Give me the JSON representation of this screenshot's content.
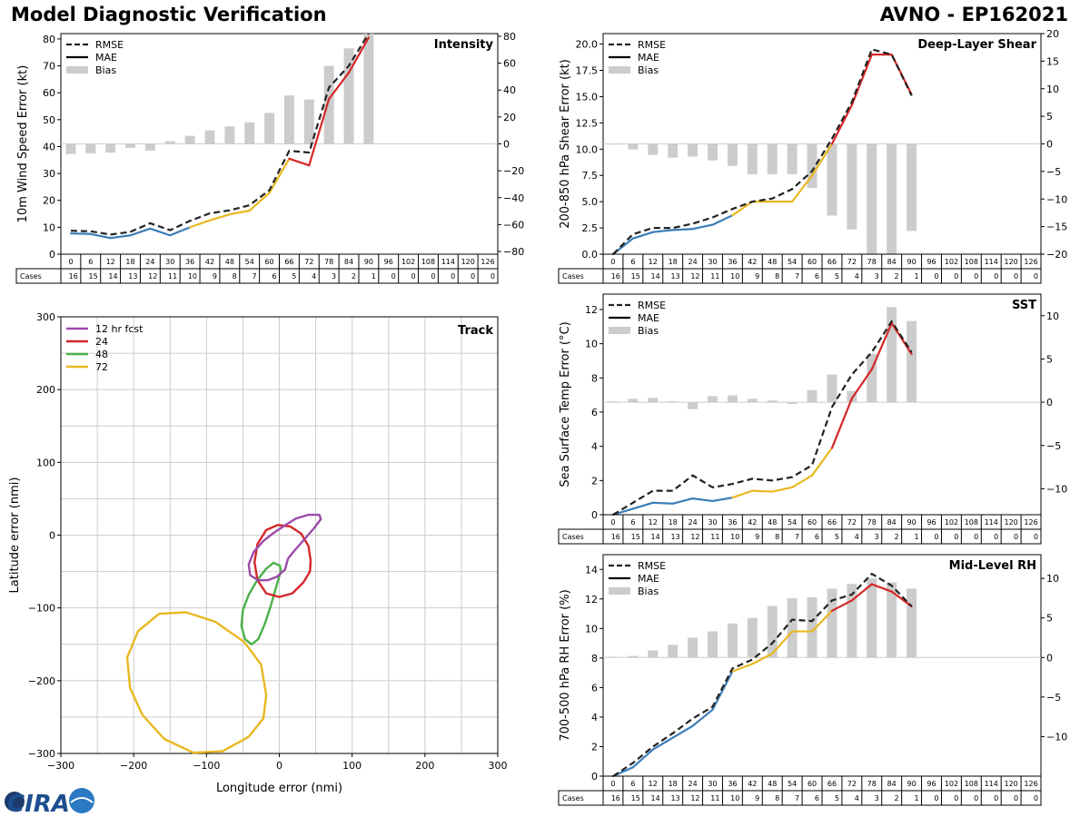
{
  "header": {
    "left_title": "Model Diagnostic Verification",
    "right_title": "AVNO - EP162021"
  },
  "logo": {
    "text": "CIRA"
  },
  "legend_labels": {
    "rmse": "RMSE",
    "mae": "MAE",
    "bias": "Bias"
  },
  "cases_label": "Cases",
  "colors": {
    "rmse": "#222222",
    "mae_early": "#3a7db8",
    "mae_mid": "#e8b820",
    "mae_late": "#d62728",
    "bias": "#cccccc",
    "grid": "#cccccc"
  },
  "chart_data": [
    {
      "type": "line",
      "panel": "intensity",
      "title": "Intensity",
      "ylabel": "10m Wind Speed Error (kt)",
      "ylim": [
        0,
        82
      ],
      "yticks": [
        0,
        10,
        20,
        30,
        40,
        50,
        60,
        70,
        80
      ],
      "y2lim": [
        -82,
        82
      ],
      "y2ticks": [
        -80,
        -60,
        -40,
        -20,
        0,
        20,
        40,
        60,
        80
      ],
      "lead_hours": [
        0,
        6,
        12,
        18,
        24,
        30,
        36,
        42,
        48,
        54,
        60,
        66,
        72,
        78,
        84,
        90,
        96,
        102,
        108,
        114,
        120,
        126
      ],
      "cases": [
        16,
        15,
        14,
        13,
        12,
        11,
        10,
        9,
        8,
        7,
        6,
        5,
        4,
        3,
        2,
        1,
        0,
        0,
        0,
        0,
        0,
        0
      ],
      "series": [
        {
          "name": "RMSE",
          "values": [
            8.7,
            8.5,
            7.3,
            8.3,
            11.5,
            8.9,
            12.4,
            15.2,
            16.3,
            18.2,
            23.8,
            38.4,
            37.8,
            62.0,
            70.0,
            82.0
          ]
        },
        {
          "name": "MAE",
          "values": [
            7.7,
            7.5,
            6.0,
            7.0,
            9.5,
            7.0,
            10.0,
            12.6,
            14.8,
            16.2,
            22.8,
            35.5,
            33.0,
            57.7,
            67.5,
            80.5
          ]
        },
        {
          "name": "Bias",
          "values": [
            -7.5,
            -7,
            -6.5,
            -3,
            -5,
            2,
            6,
            10,
            13,
            16,
            23,
            36,
            33,
            58,
            71,
            82
          ]
        }
      ]
    },
    {
      "type": "line",
      "panel": "deep_layer_shear",
      "title": "Deep-Layer Shear",
      "ylabel": "200-850 hPa Shear Error (kt)",
      "ylim": [
        0,
        21
      ],
      "yticks": [
        0.0,
        2.5,
        5.0,
        7.5,
        10.0,
        12.5,
        15.0,
        17.5,
        20.0
      ],
      "y2lim": [
        -20,
        20
      ],
      "y2ticks": [
        -20,
        -15,
        -10,
        -5,
        0,
        5,
        10,
        15,
        20
      ],
      "lead_hours": [
        0,
        6,
        12,
        18,
        24,
        30,
        36,
        42,
        48,
        54,
        60,
        66,
        72,
        78,
        84,
        90,
        96,
        102,
        108,
        114,
        120,
        126
      ],
      "cases": [
        16,
        15,
        14,
        13,
        12,
        11,
        10,
        9,
        8,
        7,
        6,
        5,
        4,
        3,
        2,
        1,
        0,
        0,
        0,
        0,
        0,
        0
      ],
      "series": [
        {
          "name": "RMSE",
          "values": [
            0.0,
            1.9,
            2.5,
            2.5,
            2.9,
            3.5,
            4.3,
            5.0,
            5.3,
            6.2,
            7.9,
            11.0,
            14.5,
            19.5,
            19.0,
            15.1
          ]
        },
        {
          "name": "MAE",
          "values": [
            0.0,
            1.5,
            2.1,
            2.3,
            2.4,
            2.8,
            3.7,
            5.0,
            5.0,
            5.0,
            7.5,
            10.5,
            14.2,
            19.0,
            19.0,
            15.2
          ]
        },
        {
          "name": "Bias",
          "values": [
            0,
            -1,
            -2,
            -2.5,
            -2.3,
            -3,
            -4,
            -5.5,
            -5.5,
            -5.5,
            -8,
            -13,
            -15.5,
            -20,
            -20,
            -15.8
          ]
        }
      ]
    },
    {
      "type": "line",
      "panel": "sst",
      "title": "SST",
      "ylabel": "Sea Surface Temp Error (°C)",
      "ylim": [
        0,
        12.9
      ],
      "yticks": [
        0,
        2,
        4,
        6,
        8,
        10,
        12
      ],
      "y2lim": [
        -13,
        12.5
      ],
      "y2ticks": [
        -10,
        -5,
        0,
        5,
        10
      ],
      "lead_hours": [
        0,
        6,
        12,
        18,
        24,
        30,
        36,
        42,
        48,
        54,
        60,
        66,
        72,
        78,
        84,
        90,
        96,
        102,
        108,
        114,
        120,
        126
      ],
      "cases": [
        16,
        15,
        14,
        13,
        12,
        11,
        10,
        9,
        8,
        7,
        6,
        5,
        4,
        3,
        2,
        1,
        0,
        0,
        0,
        0,
        0,
        0
      ],
      "series": [
        {
          "name": "RMSE",
          "values": [
            0.0,
            0.7,
            1.4,
            1.4,
            2.3,
            1.6,
            1.8,
            2.1,
            2.0,
            2.2,
            2.9,
            6.3,
            8.2,
            9.5,
            11.3,
            9.5
          ]
        },
        {
          "name": "MAE",
          "values": [
            0.0,
            0.35,
            0.7,
            0.65,
            0.95,
            0.8,
            1.0,
            1.4,
            1.35,
            1.6,
            2.3,
            3.9,
            6.8,
            8.5,
            11.2,
            9.4
          ]
        },
        {
          "name": "Bias",
          "values": [
            0.1,
            0.4,
            0.5,
            0.1,
            -0.8,
            0.7,
            0.8,
            0.4,
            0.2,
            -0.2,
            1.4,
            3.2,
            1.3,
            5.6,
            11.0,
            9.4
          ]
        }
      ]
    },
    {
      "type": "line",
      "panel": "mid_level_rh",
      "title": "Mid-Level RH",
      "ylabel": "700-500 hPa RH Error (%)",
      "ylim": [
        0,
        15
      ],
      "yticks": [
        0,
        2,
        4,
        6,
        8,
        10,
        12,
        14
      ],
      "y2lim": [
        -15,
        13
      ],
      "y2ticks": [
        -10,
        -5,
        0,
        5,
        10
      ],
      "lead_hours": [
        0,
        6,
        12,
        18,
        24,
        30,
        36,
        42,
        48,
        54,
        60,
        66,
        72,
        78,
        84,
        90,
        96,
        102,
        108,
        114,
        120,
        126
      ],
      "cases": [
        16,
        15,
        14,
        13,
        12,
        11,
        10,
        9,
        8,
        7,
        6,
        5,
        4,
        3,
        2,
        1,
        0,
        0,
        0,
        0,
        0,
        0
      ],
      "series": [
        {
          "name": "RMSE",
          "values": [
            0.0,
            0.9,
            2.0,
            2.9,
            3.9,
            4.7,
            7.3,
            7.9,
            9.0,
            10.6,
            10.5,
            11.9,
            12.3,
            13.7,
            12.9,
            11.5
          ]
        },
        {
          "name": "MAE",
          "values": [
            0.0,
            0.6,
            1.8,
            2.6,
            3.4,
            4.5,
            7.1,
            7.6,
            8.3,
            9.8,
            9.8,
            11.2,
            11.9,
            13.0,
            12.5,
            11.5
          ]
        },
        {
          "name": "Bias",
          "values": [
            0.1,
            0.2,
            0.9,
            1.6,
            2.5,
            3.3,
            4.3,
            5.0,
            6.5,
            7.5,
            7.6,
            8.7,
            9.3,
            10.0,
            9.5,
            8.7
          ]
        }
      ]
    },
    {
      "type": "scatter",
      "panel": "track",
      "title": "Track",
      "xlabel": "Longitude error (nmi)",
      "ylabel": "Latitude error (nmi)",
      "xlim": [
        -300,
        300
      ],
      "ylim": [
        -300,
        300
      ],
      "xticks": [
        -300,
        -200,
        -100,
        0,
        100,
        200,
        300
      ],
      "yticks": [
        -300,
        -200,
        -100,
        0,
        100,
        200,
        300
      ],
      "ellipses": [
        {
          "name": "12 hr fcst",
          "color": "#9b4aa8",
          "points": [
            [
              12,
              -32
            ],
            [
              22,
              -20
            ],
            [
              35,
              -5
            ],
            [
              48,
              10
            ],
            [
              57,
              22
            ],
            [
              55,
              28
            ],
            [
              40,
              28
            ],
            [
              23,
              23
            ],
            [
              7,
              13
            ],
            [
              -8,
              3
            ],
            [
              -22,
              -8
            ],
            [
              -35,
              -23
            ],
            [
              -42,
              -40
            ],
            [
              -40,
              -55
            ],
            [
              -29,
              -62
            ],
            [
              -16,
              -62
            ],
            [
              -3,
              -57
            ],
            [
              8,
              -47
            ],
            [
              12,
              -32
            ]
          ]
        },
        {
          "name": "24",
          "color": "#d62728",
          "points": [
            [
              43,
              -35
            ],
            [
              40,
              -15
            ],
            [
              30,
              2
            ],
            [
              15,
              12
            ],
            [
              -2,
              14
            ],
            [
              -18,
              7
            ],
            [
              -30,
              -12
            ],
            [
              -34,
              -37
            ],
            [
              -30,
              -62
            ],
            [
              -18,
              -80
            ],
            [
              0,
              -85
            ],
            [
              18,
              -80
            ],
            [
              33,
              -65
            ],
            [
              42,
              -50
            ],
            [
              43,
              -35
            ]
          ]
        },
        {
          "name": "48",
          "color": "#4cb04c",
          "points": [
            [
              2,
              -50
            ],
            [
              -4,
              -70
            ],
            [
              -12,
              -98
            ],
            [
              -20,
              -122
            ],
            [
              -29,
              -143
            ],
            [
              -38,
              -150
            ],
            [
              -47,
              -143
            ],
            [
              -52,
              -125
            ],
            [
              -50,
              -103
            ],
            [
              -42,
              -82
            ],
            [
              -31,
              -63
            ],
            [
              -18,
              -46
            ],
            [
              -8,
              -38
            ],
            [
              1,
              -42
            ],
            [
              2,
              -50
            ]
          ]
        },
        {
          "name": "72",
          "color": "#e8b820",
          "points": [
            [
              -18,
              -220
            ],
            [
              -25,
              -178
            ],
            [
              -48,
              -147
            ],
            [
              -88,
              -119
            ],
            [
              -128,
              -106
            ],
            [
              -165,
              -108
            ],
            [
              -194,
              -132
            ],
            [
              -209,
              -168
            ],
            [
              -205,
              -210
            ],
            [
              -188,
              -247
            ],
            [
              -158,
              -280
            ],
            [
              -118,
              -299
            ],
            [
              -78,
              -297
            ],
            [
              -42,
              -277
            ],
            [
              -22,
              -252
            ],
            [
              -18,
              -220
            ]
          ]
        }
      ]
    }
  ]
}
